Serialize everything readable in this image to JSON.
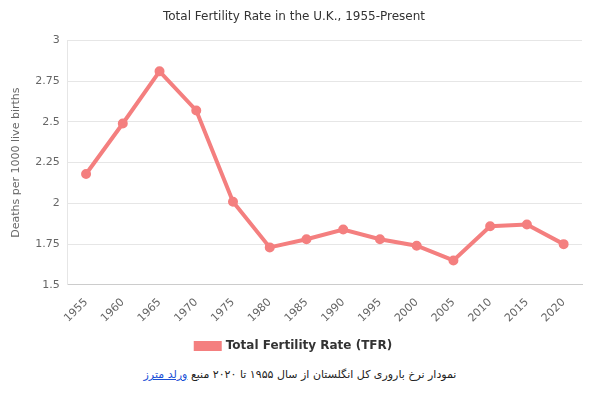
{
  "chart_data": {
    "type": "line",
    "title": "Total Fertility Rate in the U.K., 1955-Present",
    "y_label": "Deaths per 1000 live births",
    "categories": [
      "1955",
      "1960",
      "1965",
      "1970",
      "1975",
      "1980",
      "1985",
      "1990",
      "1995",
      "2000",
      "2005",
      "2010",
      "2015",
      "2020"
    ],
    "series": [
      {
        "name": "Total Fertility Rate (TFR)",
        "color": "#f47f7f",
        "values": [
          2.18,
          2.49,
          2.81,
          2.57,
          2.01,
          1.73,
          1.78,
          1.84,
          1.78,
          1.74,
          1.65,
          1.86,
          1.87,
          1.75
        ],
        "marker": "circle",
        "line_style": "solid"
      }
    ],
    "ylim": [
      1.5,
      3
    ],
    "yticks": [
      1.5,
      1.75,
      2,
      2.25,
      2.5,
      2.75,
      3
    ],
    "grid": true,
    "legend": "bottom"
  },
  "caption": {
    "text": "نمودار نرخ باروری کل انگلستان از سال ۱۹۵۵ تا ۲۰۲۰ منبع",
    "link": "ورلد مترز"
  }
}
